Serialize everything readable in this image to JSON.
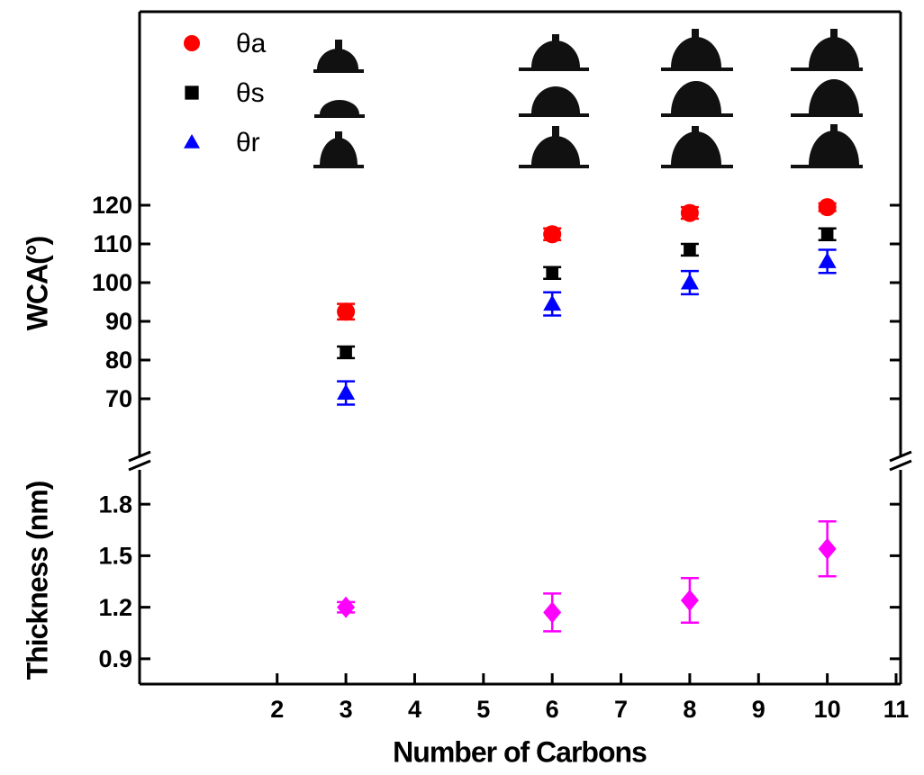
{
  "chart_data": [
    {
      "type": "scatter",
      "y_label": "WCA(°)",
      "x": [
        3,
        6,
        8,
        10
      ],
      "xlim": [
        0,
        11
      ],
      "ylim": [
        55,
        170
      ],
      "yticks": [
        70,
        80,
        90,
        100,
        110,
        120
      ],
      "series": [
        {
          "name": "θa",
          "color": "#ff0000",
          "marker": "circle",
          "values": [
            92.5,
            112.5,
            118,
            119.5
          ],
          "errors": [
            2,
            1.5,
            1.5,
            1
          ]
        },
        {
          "name": "θs",
          "color": "#000000",
          "marker": "square",
          "values": [
            82,
            102.5,
            108.5,
            112.5
          ],
          "errors": [
            1.5,
            1.5,
            1.5,
            1.5
          ]
        },
        {
          "name": "θr",
          "color": "#0000ff",
          "marker": "triangle",
          "values": [
            71.5,
            94.5,
            100,
            105.5
          ],
          "errors": [
            3,
            3,
            3,
            3
          ]
        }
      ]
    },
    {
      "type": "scatter",
      "y_label": "Thickness (nm)",
      "x_label": "Number of Carbons",
      "x": [
        3,
        6,
        8,
        10
      ],
      "xlim": [
        0,
        11
      ],
      "xticks": [
        2,
        3,
        4,
        5,
        6,
        7,
        8,
        9,
        10,
        11
      ],
      "ylim": [
        0.75,
        2.0
      ],
      "yticks": [
        0.9,
        1.2,
        1.5,
        1.8
      ],
      "series": [
        {
          "color": "#ff00ff",
          "marker": "diamond",
          "values": [
            1.2,
            1.17,
            1.24,
            1.54
          ],
          "errors": [
            0.03,
            0.11,
            0.13,
            0.16
          ]
        }
      ]
    }
  ]
}
